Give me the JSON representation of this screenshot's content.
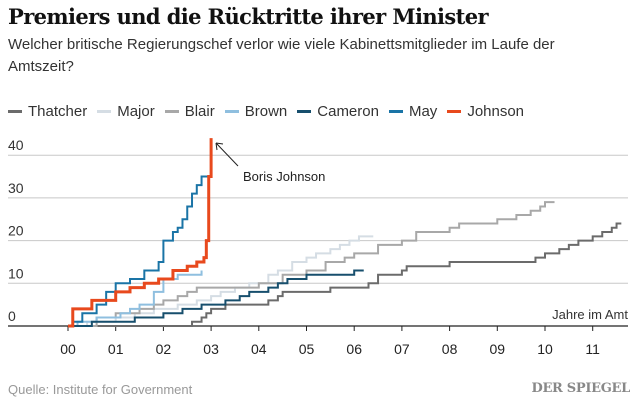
{
  "header": {
    "title": "Premiers und die Rücktritte ihrer Minister",
    "subtitle": "Welcher britische Regierungschef verlor wie viele Kabinettsmitglieder im Laufe der Amtszeit?"
  },
  "footer": {
    "source": "Quelle: Institute for Government",
    "brand": "DER SPIEGEL"
  },
  "chart_data": {
    "type": "line",
    "title": "Premiers und die Rücktritte ihrer Minister",
    "xlabel": "Jahre im Amt",
    "ylabel": "",
    "xlim": [
      0,
      11.7
    ],
    "ylim": [
      0,
      40
    ],
    "xticks": [
      "00",
      "01",
      "02",
      "03",
      "04",
      "05",
      "06",
      "07",
      "08",
      "09",
      "10",
      "11"
    ],
    "yticks": [
      0,
      10,
      20,
      30,
      40
    ],
    "grid": true,
    "legend": "top-left",
    "annotation": {
      "text": "Boris Johnson",
      "points_to": "Johnson",
      "x": 3.0,
      "y": 43
    },
    "series": [
      {
        "name": "Thatcher",
        "color": "#6b6b6b",
        "x": [
          0,
          2.5,
          2.6,
          2.8,
          2.9,
          3.0,
          3.3,
          4.2,
          4.4,
          4.5,
          5.5,
          6.3,
          6.5,
          7.0,
          7.1,
          8.0,
          9.8,
          10.0,
          10.3,
          10.5,
          10.7,
          11.0,
          11.2,
          11.4,
          11.5,
          11.6
        ],
        "y": [
          0,
          0,
          1,
          2,
          3,
          4,
          5,
          6,
          7,
          8,
          9,
          10,
          12,
          13,
          14,
          15,
          16,
          17,
          18,
          19,
          20,
          21,
          22,
          23,
          24,
          24
        ]
      },
      {
        "name": "Major",
        "color": "#d5dde4",
        "x": [
          0,
          0.4,
          1.0,
          1.4,
          1.8,
          2.3,
          2.7,
          3.0,
          3.2,
          3.5,
          3.8,
          4.2,
          4.4,
          4.7,
          5.0,
          5.2,
          5.5,
          5.7,
          5.9,
          6.1,
          6.4
        ],
        "y": [
          0,
          1,
          2,
          3,
          4,
          5,
          6,
          7,
          8,
          9,
          10,
          12,
          13,
          15,
          16,
          17,
          18,
          19,
          20,
          21,
          21
        ]
      },
      {
        "name": "Blair",
        "color": "#a8a8a8",
        "x": [
          0,
          0.6,
          1.0,
          1.5,
          1.8,
          2.0,
          2.3,
          2.5,
          2.7,
          3.6,
          4.0,
          4.5,
          5.0,
          5.4,
          5.8,
          6.0,
          6.5,
          7.0,
          7.3,
          8.0,
          8.2,
          9.0,
          9.4,
          9.7,
          9.9,
          10.0,
          10.2
        ],
        "y": [
          0,
          2,
          3,
          4,
          5,
          6,
          7,
          8,
          9,
          9,
          10,
          12,
          13,
          15,
          16,
          17,
          19,
          20,
          22,
          23,
          24,
          25,
          26,
          27,
          28,
          29,
          29
        ]
      },
      {
        "name": "Brown",
        "color": "#8fbfdf",
        "x": [
          0,
          0.2,
          0.6,
          1.1,
          1.3,
          1.5,
          1.8,
          2.0,
          2.3,
          2.8
        ],
        "y": [
          0,
          1,
          2,
          3,
          4,
          5,
          8,
          11,
          12,
          13
        ]
      },
      {
        "name": "Cameron",
        "color": "#174f6d",
        "x": [
          0,
          0.5,
          1.4,
          2.0,
          2.4,
          2.8,
          3.3,
          3.6,
          3.8,
          4.2,
          4.4,
          4.6,
          5.0,
          5.6,
          6.0,
          6.2
        ],
        "y": [
          0,
          1,
          2,
          3,
          4,
          5,
          6,
          7,
          8,
          9,
          10,
          11,
          12,
          12,
          13,
          13
        ]
      },
      {
        "name": "May",
        "color": "#1a74a6",
        "x": [
          0,
          0.1,
          0.3,
          0.6,
          0.8,
          1.0,
          1.3,
          1.6,
          1.9,
          2.0,
          2.2,
          2.3,
          2.4,
          2.5,
          2.6,
          2.7,
          2.8,
          2.9,
          3.0
        ],
        "y": [
          0,
          1,
          3,
          5,
          8,
          10,
          11,
          13,
          15,
          20,
          22,
          23,
          25,
          28,
          31,
          33,
          35,
          35,
          36
        ]
      },
      {
        "name": "Johnson",
        "color": "#e8491d",
        "x": [
          0,
          0.1,
          0.5,
          1.0,
          1.3,
          1.6,
          1.9,
          2.2,
          2.5,
          2.7,
          2.85,
          2.9,
          2.95,
          3.0
        ],
        "y": [
          0,
          4,
          6,
          8,
          9,
          10,
          11,
          13,
          14,
          15,
          16,
          20,
          35,
          44
        ]
      }
    ]
  }
}
